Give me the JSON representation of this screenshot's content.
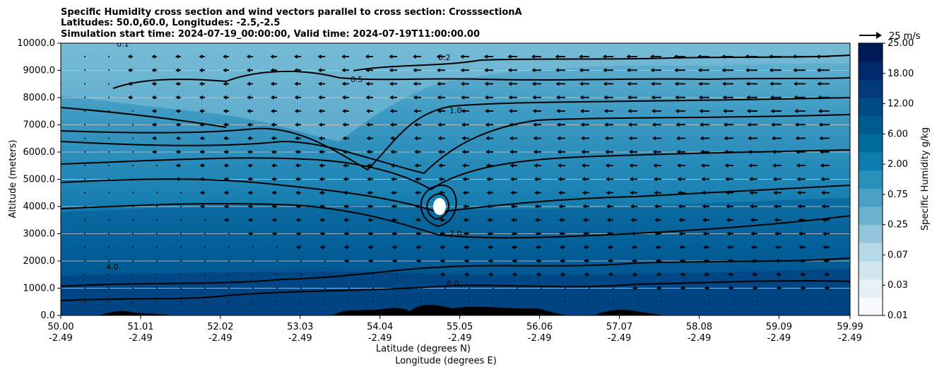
{
  "chart_data": {
    "type": "heatmap",
    "title_lines": [
      "Specific Humidity cross section and wind vectors parallel to cross section: CrosssectionA",
      "Latitudes: 50.0,60.0, Longitudes: -2.5,-2.5",
      "Simulation start time: 2024-07-19_00:00:00, Valid time: 2024-07-19T11:00:00.00"
    ],
    "ylabel": "Altitude (meters)",
    "xlabel_lat": "Latitude (degrees N)",
    "xlabel_lon": "Longitude (degrees E)",
    "colorbar_label": "Specific Humidity g/kg",
    "quiver_key_label": "25 m/s",
    "ylim": [
      0,
      10000
    ],
    "yticks": [
      "0.0",
      "1000.0",
      "2000.0",
      "3000.0",
      "4000.0",
      "5000.0",
      "6000.0",
      "7000.0",
      "8000.0",
      "9000.0",
      "10000.0"
    ],
    "xticks": [
      {
        "lat": "50.00",
        "lon": "-2.49"
      },
      {
        "lat": "51.01",
        "lon": "-2.49"
      },
      {
        "lat": "52.02",
        "lon": "-2.49"
      },
      {
        "lat": "53.03",
        "lon": "-2.49"
      },
      {
        "lat": "54.04",
        "lon": "-2.49"
      },
      {
        "lat": "55.05",
        "lon": "-2.49"
      },
      {
        "lat": "56.06",
        "lon": "-2.49"
      },
      {
        "lat": "57.07",
        "lon": "-2.49"
      },
      {
        "lat": "58.08",
        "lon": "-2.49"
      },
      {
        "lat": "59.09",
        "lon": "-2.49"
      },
      {
        "lat": "59.99",
        "lon": "-2.49"
      }
    ],
    "colorbar_levels": [
      "0.01",
      "0.03",
      "0.07",
      "0.25",
      "0.75",
      "2.00",
      "6.00",
      "12.00",
      "18.00",
      "25.00"
    ],
    "colorbar_colors": [
      "#f7fbfd",
      "#e4f1f5",
      "#cfe6ee",
      "#b4d8e6",
      "#93c6da",
      "#6cb2cf",
      "#4aa0c3",
      "#2890b9",
      "#0a7fae",
      "#006a9a",
      "#005b8f",
      "#004a86",
      "#003a7a",
      "#002a6c",
      "#001a58"
    ],
    "contour_levels": [
      "0.1",
      "0.2",
      "0.5",
      "1.0",
      "2.0",
      "4.0",
      "8.0"
    ],
    "grid": "horizontal"
  },
  "colors": {
    "cmap_top": "#001a58",
    "cmap_bottom": "#f7fbfd",
    "contour": "#000000",
    "terrain": "#000000"
  }
}
